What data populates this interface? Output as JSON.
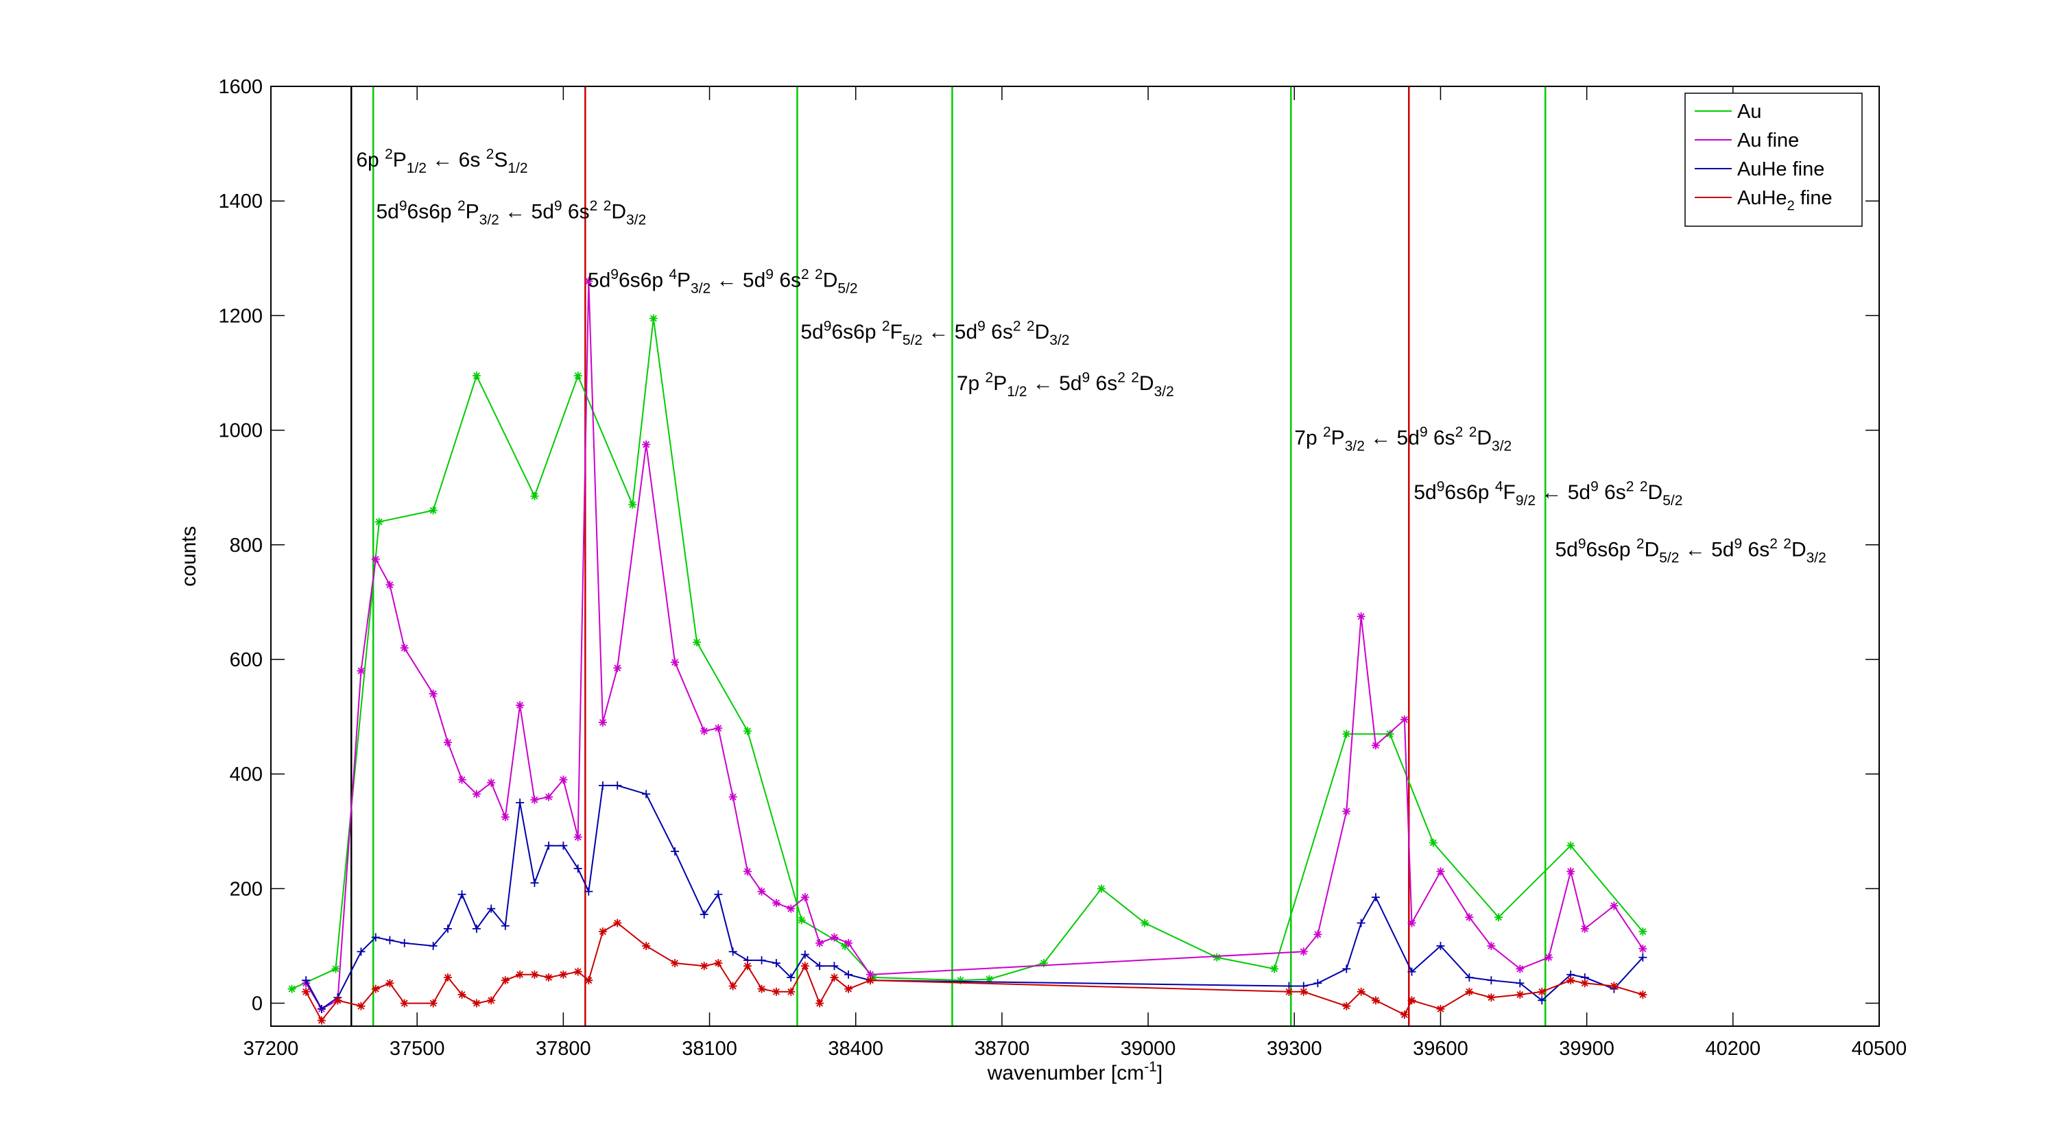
{
  "chart_data": {
    "type": "line",
    "xlabel": "wavenumber [cm",
    "xlabel_sup": "-1",
    "xlabel_tail": "]",
    "ylabel": "counts",
    "xlim": [
      37200,
      40500
    ],
    "ylim": [
      -40,
      1600
    ],
    "xticks": [
      37200,
      37500,
      37800,
      38100,
      38400,
      38700,
      39000,
      39300,
      39600,
      39900,
      40200,
      40500
    ],
    "yticks": [
      0,
      200,
      400,
      600,
      800,
      1000,
      1200,
      1400,
      1600
    ],
    "legend_position": "top-right",
    "colors": {
      "Au": "#00cc00",
      "Au fine": "#cc00cc",
      "AuHe fine": "#0000aa",
      "AuHe2 fine": "#cc0000"
    },
    "series": [
      {
        "name": "Au",
        "legend": [
          {
            "t": "Au"
          }
        ],
        "color": "#00cc00",
        "marker": "*",
        "points": [
          [
            37243,
            25
          ],
          [
            37333,
            60
          ],
          [
            37422,
            840
          ],
          [
            37533,
            860
          ],
          [
            37622,
            1095
          ],
          [
            37741,
            885
          ],
          [
            37830,
            1095
          ],
          [
            37942,
            870
          ],
          [
            37985,
            1195
          ],
          [
            38074,
            630
          ],
          [
            38178,
            475
          ],
          [
            38289,
            145
          ],
          [
            38378,
            100
          ],
          [
            38437,
            45
          ],
          [
            38615,
            40
          ],
          [
            38674,
            42
          ],
          [
            38786,
            70
          ],
          [
            38904,
            200
          ],
          [
            38993,
            140
          ],
          [
            39141,
            80
          ],
          [
            39259,
            60
          ],
          [
            39407,
            470
          ],
          [
            39496,
            470
          ],
          [
            39585,
            280
          ],
          [
            39719,
            150
          ],
          [
            39867,
            275
          ],
          [
            40015,
            125
          ]
        ]
      },
      {
        "name": "Au fine",
        "legend": [
          {
            "t": "Au fine"
          }
        ],
        "color": "#cc00cc",
        "marker": "*",
        "points": [
          [
            37272,
            35
          ],
          [
            37304,
            -10
          ],
          [
            37337,
            5
          ],
          [
            37385,
            580
          ],
          [
            37415,
            775
          ],
          [
            37444,
            730
          ],
          [
            37474,
            620
          ],
          [
            37533,
            540
          ],
          [
            37563,
            455
          ],
          [
            37592,
            390
          ],
          [
            37622,
            365
          ],
          [
            37652,
            385
          ],
          [
            37681,
            325
          ],
          [
            37711,
            520
          ],
          [
            37741,
            355
          ],
          [
            37770,
            360
          ],
          [
            37800,
            390
          ],
          [
            37830,
            290
          ],
          [
            37852,
            1260
          ],
          [
            37881,
            490
          ],
          [
            37911,
            585
          ],
          [
            37970,
            975
          ],
          [
            38029,
            595
          ],
          [
            38089,
            475
          ],
          [
            38118,
            480
          ],
          [
            38148,
            360
          ],
          [
            38178,
            230
          ],
          [
            38207,
            195
          ],
          [
            38237,
            175
          ],
          [
            38267,
            165
          ],
          [
            38296,
            185
          ],
          [
            38326,
            105
          ],
          [
            38356,
            115
          ],
          [
            38385,
            105
          ],
          [
            38430,
            50
          ],
          [
            39319,
            90
          ],
          [
            39348,
            120
          ],
          [
            39407,
            335
          ],
          [
            39437,
            675
          ],
          [
            39467,
            450
          ],
          [
            39526,
            495
          ],
          [
            39541,
            140
          ],
          [
            39600,
            230
          ],
          [
            39659,
            150
          ],
          [
            39704,
            100
          ],
          [
            39763,
            60
          ],
          [
            39822,
            80
          ],
          [
            39867,
            230
          ],
          [
            39896,
            130
          ],
          [
            39956,
            170
          ],
          [
            40015,
            95
          ]
        ]
      },
      {
        "name": "AuHe fine",
        "legend": [
          {
            "t": "AuHe fine"
          }
        ],
        "color": "#0000aa",
        "marker": "+",
        "points": [
          [
            37272,
            40
          ],
          [
            37304,
            -10
          ],
          [
            37337,
            10
          ],
          [
            37385,
            90
          ],
          [
            37415,
            115
          ],
          [
            37444,
            110
          ],
          [
            37474,
            105
          ],
          [
            37533,
            100
          ],
          [
            37563,
            130
          ],
          [
            37592,
            190
          ],
          [
            37622,
            130
          ],
          [
            37652,
            165
          ],
          [
            37681,
            135
          ],
          [
            37711,
            350
          ],
          [
            37741,
            210
          ],
          [
            37770,
            275
          ],
          [
            37800,
            275
          ],
          [
            37830,
            235
          ],
          [
            37852,
            195
          ],
          [
            37881,
            380
          ],
          [
            37911,
            380
          ],
          [
            37970,
            365
          ],
          [
            38029,
            265
          ],
          [
            38089,
            155
          ],
          [
            38118,
            190
          ],
          [
            38148,
            90
          ],
          [
            38178,
            75
          ],
          [
            38207,
            75
          ],
          [
            38237,
            70
          ],
          [
            38267,
            45
          ],
          [
            38296,
            85
          ],
          [
            38326,
            65
          ],
          [
            38356,
            65
          ],
          [
            38385,
            50
          ],
          [
            38430,
            40
          ],
          [
            39289,
            30
          ],
          [
            39319,
            30
          ],
          [
            39348,
            35
          ],
          [
            39407,
            60
          ],
          [
            39437,
            140
          ],
          [
            39467,
            185
          ],
          [
            39541,
            55
          ],
          [
            39600,
            100
          ],
          [
            39659,
            45
          ],
          [
            39704,
            40
          ],
          [
            39763,
            35
          ],
          [
            39808,
            5
          ],
          [
            39867,
            50
          ],
          [
            39896,
            45
          ],
          [
            39956,
            25
          ],
          [
            40015,
            80
          ]
        ]
      },
      {
        "name": "AuHe2 fine",
        "legend": [
          {
            "t": "AuHe"
          },
          {
            "t": "2",
            "sub": true
          },
          {
            "t": " fine"
          }
        ],
        "color": "#cc0000",
        "marker": "*",
        "points": [
          [
            37272,
            20
          ],
          [
            37304,
            -30
          ],
          [
            37337,
            5
          ],
          [
            37385,
            -5
          ],
          [
            37415,
            25
          ],
          [
            37444,
            35
          ],
          [
            37474,
            0
          ],
          [
            37533,
            0
          ],
          [
            37563,
            45
          ],
          [
            37592,
            15
          ],
          [
            37622,
            0
          ],
          [
            37652,
            5
          ],
          [
            37681,
            40
          ],
          [
            37711,
            50
          ],
          [
            37741,
            50
          ],
          [
            37770,
            45
          ],
          [
            37800,
            50
          ],
          [
            37830,
            55
          ],
          [
            37852,
            40
          ],
          [
            37881,
            125
          ],
          [
            37911,
            140
          ],
          [
            37970,
            100
          ],
          [
            38029,
            70
          ],
          [
            38089,
            65
          ],
          [
            38118,
            70
          ],
          [
            38148,
            30
          ],
          [
            38178,
            65
          ],
          [
            38207,
            25
          ],
          [
            38237,
            20
          ],
          [
            38267,
            20
          ],
          [
            38296,
            65
          ],
          [
            38326,
            0
          ],
          [
            38356,
            45
          ],
          [
            38385,
            25
          ],
          [
            38430,
            40
          ],
          [
            39289,
            20
          ],
          [
            39319,
            20
          ],
          [
            39407,
            -5
          ],
          [
            39437,
            20
          ],
          [
            39467,
            5
          ],
          [
            39526,
            -20
          ],
          [
            39541,
            5
          ],
          [
            39600,
            -10
          ],
          [
            39659,
            20
          ],
          [
            39704,
            10
          ],
          [
            39763,
            15
          ],
          [
            39808,
            20
          ],
          [
            39867,
            40
          ],
          [
            39896,
            35
          ],
          [
            39956,
            30
          ],
          [
            40015,
            15
          ]
        ]
      }
    ],
    "transition_lines": [
      {
        "x": 37365,
        "color": "#000000",
        "label_x": 37375,
        "label_y": 1460,
        "label": [
          {
            "t": "6p "
          },
          {
            "t": "2",
            "sup": true
          },
          {
            "t": "P"
          },
          {
            "t": "1/2",
            "sub": true
          },
          {
            "t": " ← 6s "
          },
          {
            "t": "2",
            "sup": true
          },
          {
            "t": "S"
          },
          {
            "t": "1/2",
            "sub": true
          }
        ]
      },
      {
        "x": 37410,
        "color": "#00cc00",
        "label_x": 37416,
        "label_y": 1370,
        "label": [
          {
            "t": "5d"
          },
          {
            "t": "9",
            "sup": true
          },
          {
            "t": "6s6p "
          },
          {
            "t": "2",
            "sup": true
          },
          {
            "t": "P"
          },
          {
            "t": "3/2",
            "sub": true
          },
          {
            "t": " ← 5d"
          },
          {
            "t": "9",
            "sup": true
          },
          {
            "t": " 6s"
          },
          {
            "t": "2",
            "sup": true
          },
          {
            "t": " "
          },
          {
            "t": "2",
            "sup": true
          },
          {
            "t": "D"
          },
          {
            "t": "3/2",
            "sub": true
          }
        ]
      },
      {
        "x": 37845,
        "color": "#cc0000",
        "label_x": 37850,
        "label_y": 1250,
        "label": [
          {
            "t": "5d"
          },
          {
            "t": "9",
            "sup": true
          },
          {
            "t": "6s6p "
          },
          {
            "t": "4",
            "sup": true
          },
          {
            "t": "P"
          },
          {
            "t": "3/2",
            "sub": true
          },
          {
            "t": " ← 5d"
          },
          {
            "t": "9",
            "sup": true
          },
          {
            "t": " 6s"
          },
          {
            "t": "2",
            "sup": true
          },
          {
            "t": " "
          },
          {
            "t": "2",
            "sup": true
          },
          {
            "t": "D"
          },
          {
            "t": "5/2",
            "sub": true
          }
        ]
      },
      {
        "x": 38280,
        "color": "#00cc00",
        "label_x": 38287,
        "label_y": 1160,
        "label": [
          {
            "t": "5d"
          },
          {
            "t": "9",
            "sup": true
          },
          {
            "t": "6s6p "
          },
          {
            "t": "2",
            "sup": true
          },
          {
            "t": "F"
          },
          {
            "t": "5/2",
            "sub": true
          },
          {
            "t": " ← 5d"
          },
          {
            "t": "9",
            "sup": true
          },
          {
            "t": " 6s"
          },
          {
            "t": "2",
            "sup": true
          },
          {
            "t": " "
          },
          {
            "t": "2",
            "sup": true
          },
          {
            "t": "D"
          },
          {
            "t": "3/2",
            "sub": true
          }
        ]
      },
      {
        "x": 38598,
        "color": "#00cc00",
        "label_x": 38607,
        "label_y": 1070,
        "label": [
          {
            "t": "7p "
          },
          {
            "t": "2",
            "sup": true
          },
          {
            "t": "P"
          },
          {
            "t": "1/2",
            "sub": true
          },
          {
            "t": " ← 5d"
          },
          {
            "t": "9",
            "sup": true
          },
          {
            "t": " 6s"
          },
          {
            "t": "2",
            "sup": true
          },
          {
            "t": " "
          },
          {
            "t": "2",
            "sup": true
          },
          {
            "t": "D"
          },
          {
            "t": "3/2",
            "sub": true
          }
        ]
      },
      {
        "x": 39293,
        "color": "#00cc00",
        "label_x": 39300,
        "label_y": 975,
        "label": [
          {
            "t": "7p "
          },
          {
            "t": "2",
            "sup": true
          },
          {
            "t": "P"
          },
          {
            "t": "3/2",
            "sub": true
          },
          {
            "t": " ← 5d"
          },
          {
            "t": "9",
            "sup": true
          },
          {
            "t": " 6s"
          },
          {
            "t": "2",
            "sup": true
          },
          {
            "t": " "
          },
          {
            "t": "2",
            "sup": true
          },
          {
            "t": "D"
          },
          {
            "t": "3/2",
            "sub": true
          }
        ]
      },
      {
        "x": 39535,
        "color": "#cc0000",
        "label_x": 39545,
        "label_y": 880,
        "label": [
          {
            "t": "5d"
          },
          {
            "t": "9",
            "sup": true
          },
          {
            "t": "6s6p "
          },
          {
            "t": "4",
            "sup": true
          },
          {
            "t": "F"
          },
          {
            "t": "9/2",
            "sub": true
          },
          {
            "t": " ← 5d"
          },
          {
            "t": "9",
            "sup": true
          },
          {
            "t": " 6s"
          },
          {
            "t": "2",
            "sup": true
          },
          {
            "t": " "
          },
          {
            "t": "2",
            "sup": true
          },
          {
            "t": "D"
          },
          {
            "t": "5/2",
            "sub": true
          }
        ]
      },
      {
        "x": 39815,
        "color": "#00cc00",
        "label_x": 39835,
        "label_y": 780,
        "label": [
          {
            "t": "5d"
          },
          {
            "t": "9",
            "sup": true
          },
          {
            "t": "6s6p "
          },
          {
            "t": "2",
            "sup": true
          },
          {
            "t": "D"
          },
          {
            "t": "5/2",
            "sub": true
          },
          {
            "t": " ← 5d"
          },
          {
            "t": "9",
            "sup": true
          },
          {
            "t": " 6s"
          },
          {
            "t": "2",
            "sup": true
          },
          {
            "t": " "
          },
          {
            "t": "2",
            "sup": true
          },
          {
            "t": "D"
          },
          {
            "t": "3/2",
            "sub": true
          }
        ]
      }
    ]
  }
}
